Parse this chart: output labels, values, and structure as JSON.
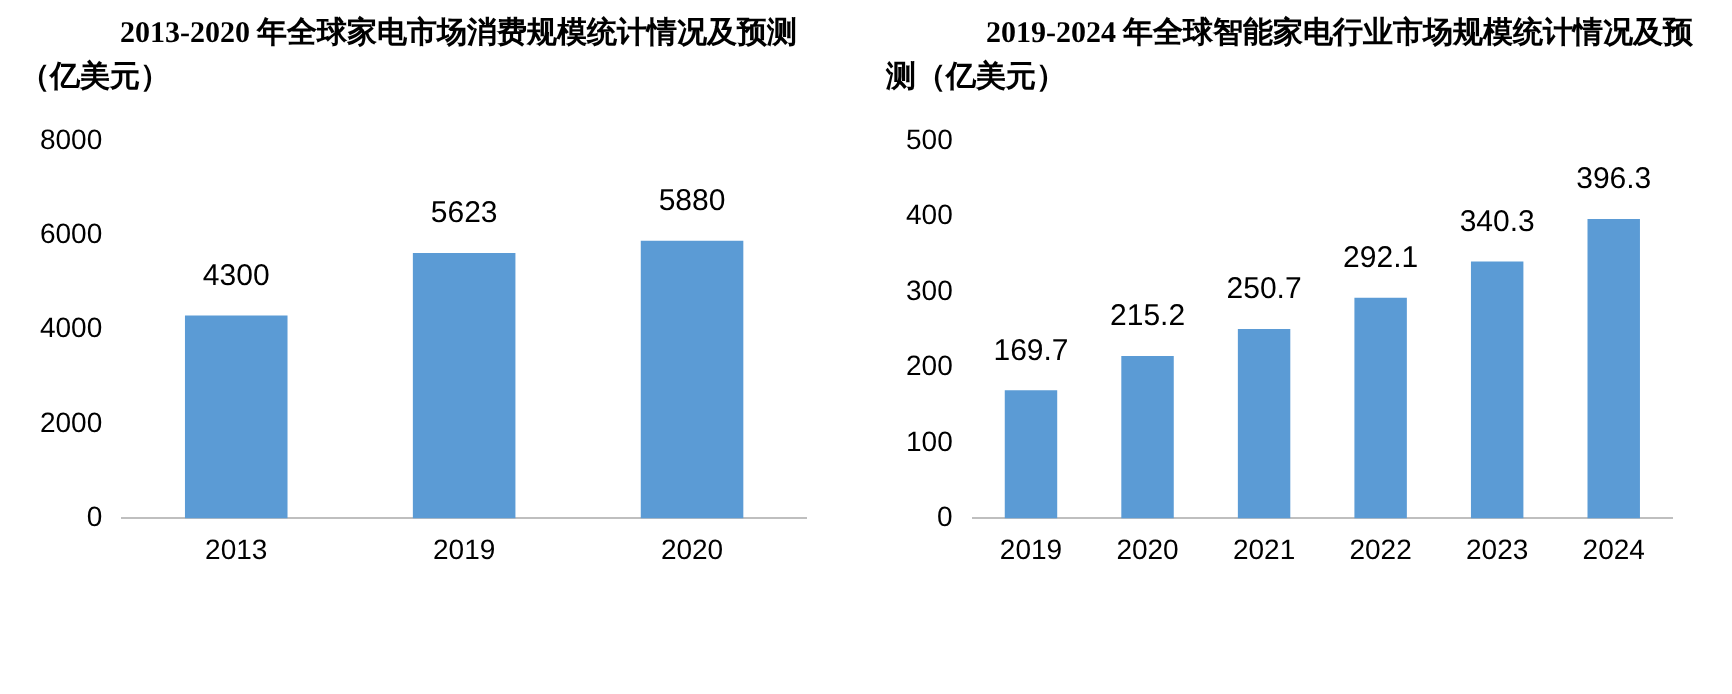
{
  "chart_data": [
    {
      "type": "bar",
      "title": "2013-2020 年全球家电市场消费规模统计情况及预测（亿美元）",
      "categories": [
        "2013",
        "2019",
        "2020"
      ],
      "values": [
        4300,
        5623,
        5880
      ],
      "color": "#5b9bd5",
      "ylim": [
        0,
        8000
      ],
      "yticks": [
        0,
        2000,
        4000,
        6000,
        8000
      ],
      "grid": false,
      "legend": false,
      "data_labels": true
    },
    {
      "type": "bar",
      "title": "2019-2024 年全球智能家电行业市场规模统计情况及预测（亿美元）",
      "categories": [
        "2019",
        "2020",
        "2021",
        "2022",
        "2023",
        "2024"
      ],
      "values": [
        169.7,
        215.2,
        250.7,
        292.1,
        340.3,
        396.3
      ],
      "color": "#5b9bd5",
      "ylim": [
        0,
        500
      ],
      "yticks": [
        0,
        100,
        200,
        300,
        400,
        500
      ],
      "grid": false,
      "legend": false,
      "data_labels": true
    }
  ]
}
